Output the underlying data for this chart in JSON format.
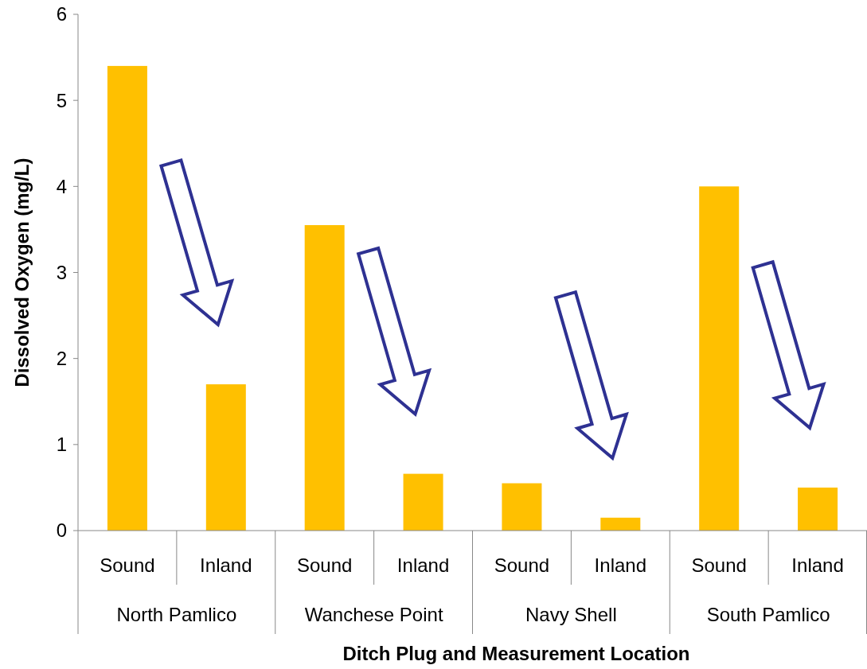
{
  "chart_data": {
    "type": "bar",
    "xlabel": "Ditch Plug and Measurement Location",
    "ylabel": "Dissolved Oxygen (mg/L)",
    "categories": [
      "Sound",
      "Inland",
      "Sound",
      "Inland",
      "Sound",
      "Inland",
      "Sound",
      "Inland"
    ],
    "values": [
      5.4,
      1.7,
      3.55,
      0.66,
      0.55,
      0.15,
      4.0,
      0.5
    ],
    "color": "#ffc000",
    "ylim": [
      0,
      6
    ],
    "yticks": [
      0,
      1,
      2,
      3,
      4,
      5,
      6
    ],
    "annotations": [
      "North Pamlico",
      "Wanchese Point",
      "Navy Shell",
      "South Pamlico"
    ]
  }
}
